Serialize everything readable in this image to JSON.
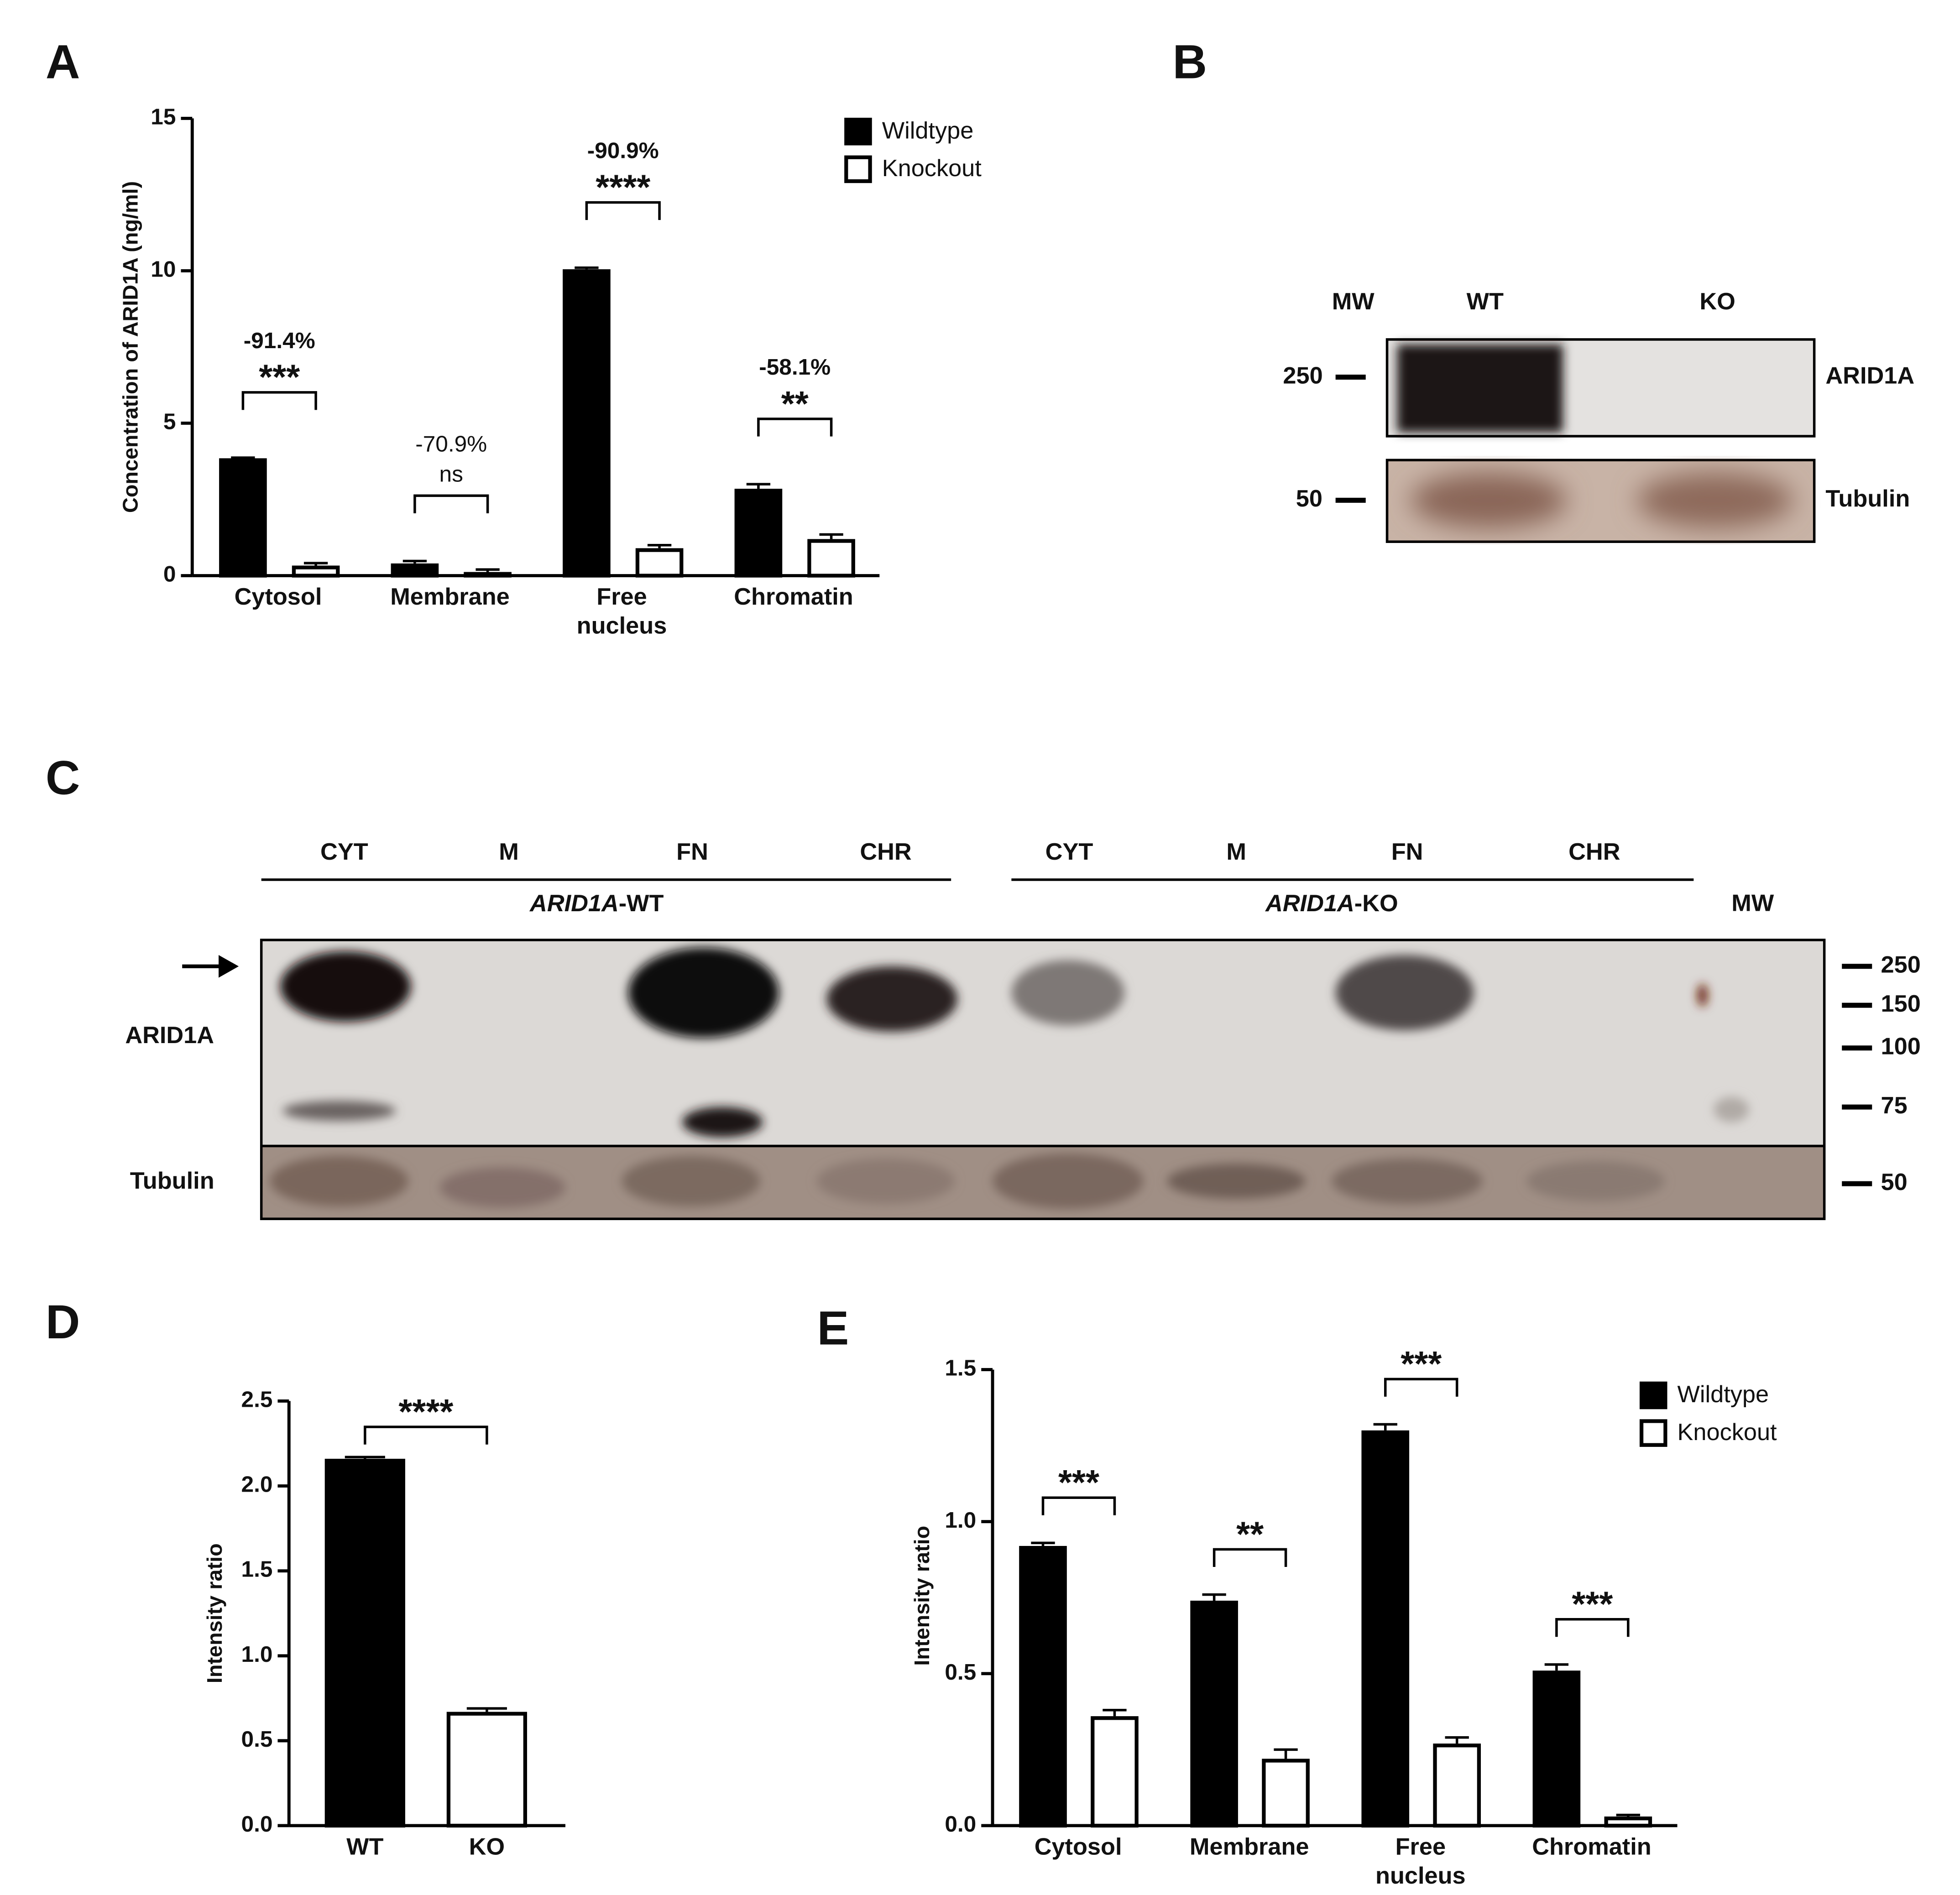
{
  "panel_labels": [
    "A",
    "B",
    "C",
    "D",
    "E"
  ],
  "chart_data": [
    {
      "type": "bar",
      "y_label": "Concentration of ARID1A (ng/ml)",
      "categories": [
        "Cytosol",
        "Membrane",
        "Free nucleus",
        "Chromatin"
      ],
      "series": [
        {
          "name": "Wildtype",
          "color": "#000000",
          "values": [
            3.85,
            0.4,
            10.05,
            2.85
          ],
          "errors": [
            0.02,
            0.08,
            0.05,
            0.15
          ]
        },
        {
          "name": "Knockout",
          "color": "#ffffff",
          "values": [
            0.33,
            0.12,
            0.9,
            1.2
          ],
          "errors": [
            0.08,
            0.08,
            0.1,
            0.15
          ]
        }
      ],
      "ylim": [
        0,
        15
      ],
      "yticks": [
        0,
        5,
        10,
        15
      ],
      "change_labels": [
        "-91.4%",
        "-70.9%",
        "-90.9%",
        "-58.1%"
      ],
      "significance": [
        "***",
        "ns",
        "****",
        "**"
      ],
      "legend": "upper right"
    },
    {
      "type": "bar",
      "y_label": "Intensity ratio",
      "categories": [
        "WT",
        "KO"
      ],
      "values": [
        2.16,
        0.67
      ],
      "errors": [
        0.01,
        0.02
      ],
      "colors": [
        "#000000",
        "#ffffff"
      ],
      "ylim": [
        0,
        2.5
      ],
      "yticks": [
        {
          "value": 0,
          "label": "0.0"
        },
        0.5,
        {
          "value": 1,
          "label": "1.0"
        },
        1.5,
        {
          "value": 2,
          "label": "2.0"
        },
        2.5
      ],
      "significance": [
        "****"
      ]
    },
    {
      "type": "bar",
      "y_label": "Intensity ratio",
      "categories": [
        "Cytosol",
        "Membrane",
        "Free nucleus",
        "Chromatin"
      ],
      "series": [
        {
          "name": "Wildtype",
          "color": "#000000",
          "values": [
            0.92,
            0.74,
            1.3,
            0.51
          ],
          "errors": [
            0.01,
            0.02,
            0.02,
            0.02
          ]
        },
        {
          "name": "Knockout",
          "color": "#ffffff",
          "values": [
            0.36,
            0.22,
            0.27,
            0.03
          ],
          "errors": [
            0.02,
            0.03,
            0.02,
            0.005
          ]
        }
      ],
      "ylim": [
        0,
        1.5
      ],
      "yticks": [
        {
          "value": 0,
          "label": "0.0"
        },
        0.5,
        {
          "value": 1,
          "label": "1.0"
        },
        1.5
      ],
      "significance": [
        "***",
        "**",
        "***",
        "***"
      ],
      "legend": "upper right"
    }
  ],
  "blot_b": {
    "lanes": [
      "MW",
      "WT",
      "KO"
    ],
    "markers": [
      "250",
      "50"
    ],
    "bands": [
      "ARID1A",
      "Tubulin"
    ]
  },
  "blot_c": {
    "lanes": [
      "CYT",
      "M",
      "FN",
      "CHR",
      "CYT",
      "M",
      "FN",
      "CHR"
    ],
    "groups": [
      [
        "ARID1A",
        "-WT"
      ],
      [
        "ARID1A",
        "-KO"
      ]
    ],
    "mw": "MW",
    "markers": [
      "250",
      "150",
      "100",
      "75",
      "50"
    ],
    "bands": [
      "ARID1A",
      "Tubulin"
    ]
  }
}
